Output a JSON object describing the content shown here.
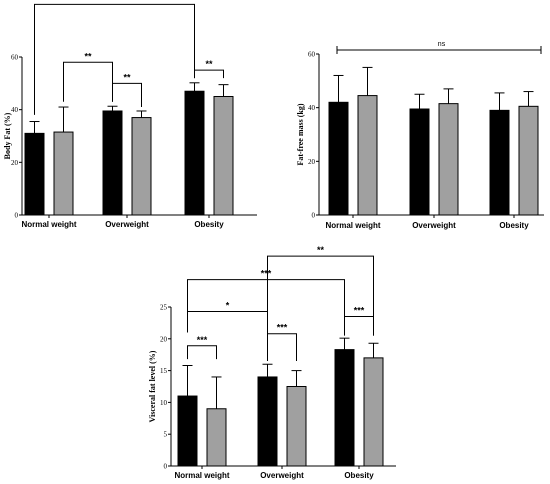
{
  "chart_data": [
    {
      "type": "bar",
      "ylabel": "Body Fat (%)",
      "ylim": [
        0,
        60
      ],
      "yticks": [
        0,
        20,
        40,
        60
      ],
      "categories": [
        "Normal weight",
        "Overweight",
        "Obesity"
      ],
      "series": [
        {
          "color": "#000000",
          "values": [
            31,
            39.5,
            47
          ],
          "errors": [
            4.5,
            1.8,
            3.2
          ]
        },
        {
          "color": "#a0a0a0",
          "values": [
            31.5,
            37,
            45
          ],
          "errors": [
            9.5,
            2.5,
            4.5
          ]
        }
      ],
      "annotations": [
        {
          "label": "***",
          "from": {
            "cat": 0,
            "s": 0
          },
          "to": {
            "cat": 2,
            "s": 0
          },
          "y_line": 80,
          "y_from": 38,
          "y_to": 52
        },
        {
          "label": "**",
          "from": {
            "cat": 0,
            "s": 1
          },
          "to": {
            "cat": 1,
            "s": 0
          },
          "y_line": 58,
          "y_from": 43,
          "y_to": 43
        },
        {
          "label": "**",
          "from": {
            "cat": 1,
            "s": 0
          },
          "to": {
            "cat": 1,
            "s": 1
          },
          "y_line": 50,
          "y_from": 43,
          "y_to": 41
        },
        {
          "label": "**",
          "from": {
            "cat": 2,
            "s": 0
          },
          "to": {
            "cat": 2,
            "s": 1
          },
          "y_line": 55,
          "y_from": 52,
          "y_to": 52
        }
      ]
    },
    {
      "type": "bar",
      "ylabel": "Fat-free mass (kg)",
      "ylim": [
        0,
        60
      ],
      "yticks": [
        0,
        20,
        40,
        60
      ],
      "categories": [
        "Normal weight",
        "Overweight",
        "Obesity"
      ],
      "series": [
        {
          "color": "#000000",
          "values": [
            42,
            39.5,
            39
          ],
          "errors": [
            10,
            5.5,
            6.5
          ]
        },
        {
          "color": "#a0a0a0",
          "values": [
            44.5,
            41.5,
            40.5
          ],
          "errors": [
            10.5,
            5.5,
            5.5
          ]
        }
      ],
      "annotations": [
        {
          "label": "ns",
          "span": true,
          "y_line": 61.5
        }
      ]
    },
    {
      "type": "bar",
      "ylabel": "Visceral fat level (%)",
      "ylim": [
        0,
        25
      ],
      "yticks": [
        0,
        5,
        10,
        15,
        20,
        25
      ],
      "categories": [
        "Normal weight",
        "Overweight",
        "Obesity"
      ],
      "series": [
        {
          "color": "#000000",
          "values": [
            11,
            14,
            18.3
          ],
          "errors": [
            4.8,
            2,
            1.8
          ]
        },
        {
          "color": "#a0a0a0",
          "values": [
            9,
            12.5,
            17
          ],
          "errors": [
            5,
            2.5,
            2.3
          ]
        }
      ],
      "annotations": [
        {
          "label": "***",
          "from": {
            "cat": 0,
            "s": 0
          },
          "to": {
            "cat": 2,
            "s": 0
          },
          "y_line": 29.3,
          "y_from": 22.3,
          "y_to": 21.3
        },
        {
          "label": "**",
          "from": {
            "cat": 1,
            "s": 0
          },
          "to": {
            "cat": 2,
            "s": 1
          },
          "y_line": 33,
          "y_from": 17,
          "y_to": 20.5
        },
        {
          "label": "*",
          "from": {
            "cat": 0,
            "s": 0
          },
          "to": {
            "cat": 1,
            "s": 0
          },
          "y_line": 24.3,
          "y_from": 21,
          "y_to": 21
        },
        {
          "label": "***",
          "from": {
            "cat": 0,
            "s": 0
          },
          "to": {
            "cat": 0,
            "s": 1
          },
          "y_line": 18.9,
          "y_from": 16.8,
          "y_to": 16.8
        },
        {
          "label": "***",
          "from": {
            "cat": 1,
            "s": 0
          },
          "to": {
            "cat": 1,
            "s": 1
          },
          "y_line": 20.8,
          "y_from": 16.5,
          "y_to": 16.5
        },
        {
          "label": "***",
          "from": {
            "cat": 2,
            "s": 0
          },
          "to": {
            "cat": 2,
            "s": 1
          },
          "y_line": 23.5,
          "y_from": 20.5,
          "y_to": 20.5
        }
      ]
    }
  ]
}
